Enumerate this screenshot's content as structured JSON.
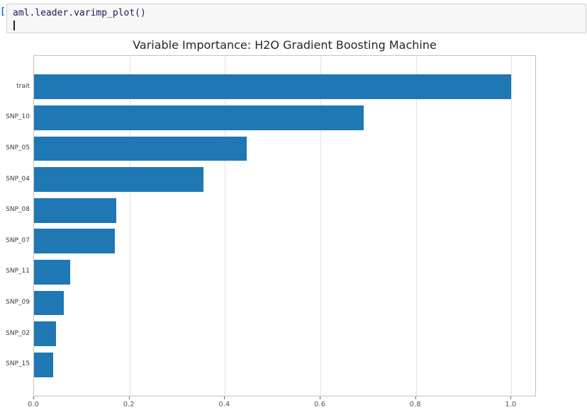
{
  "notebook": {
    "prompt": "[",
    "cell_code": "aml.leader.varimp_plot()"
  },
  "chart_data": {
    "type": "bar",
    "orientation": "horizontal",
    "title": "Variable Importance: H2O Gradient Boosting Machine",
    "categories": [
      "trait",
      "SNP_10",
      "SNP_05",
      "SNP_04",
      "SNP_08",
      "SNP_07",
      "SNP_11",
      "SNP_09",
      "SNP_02",
      "SNP_15"
    ],
    "values": [
      1.0,
      0.69,
      0.445,
      0.355,
      0.173,
      0.17,
      0.076,
      0.063,
      0.046,
      0.04
    ],
    "xlabel": "",
    "ylabel": "",
    "xlim": [
      0,
      1.05
    ],
    "xticks": [
      0,
      0.2,
      0.4,
      0.6,
      0.8,
      1.0
    ],
    "xtick_labels": [
      "0.0",
      "0.2",
      "0.4",
      "0.6",
      "0.8",
      "1.0"
    ],
    "bar_color": "#1f77b4",
    "grid": true,
    "legend": "none"
  }
}
